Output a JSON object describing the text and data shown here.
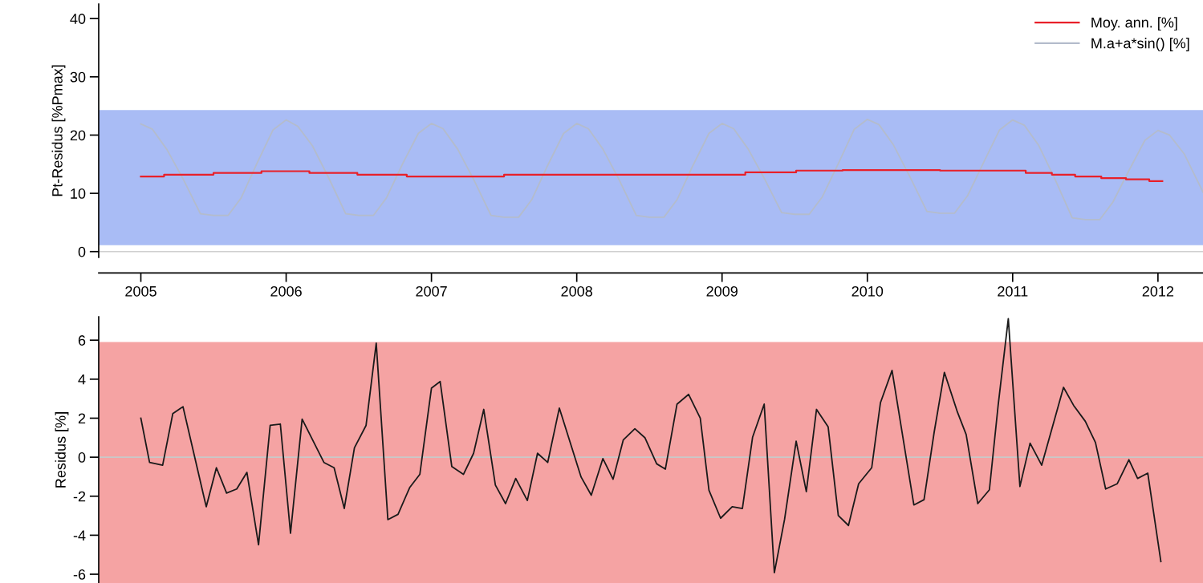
{
  "chart_data": [
    {
      "type": "line",
      "ylabel": "Pt-Residus [%Pmax]",
      "xlim": [
        2004.71,
        2012.31
      ],
      "ylim": [
        -1,
        42.5
      ],
      "xticks": [
        2005,
        2006,
        2007,
        2008,
        2009,
        2010,
        2011,
        2012
      ],
      "yticks": [
        0,
        10,
        20,
        30,
        40
      ],
      "grid": false,
      "legend": "top right",
      "bands": [
        {
          "axis": "y",
          "from": 1.1,
          "to": 24.3,
          "color": "#a9bcf5"
        }
      ],
      "ref_lines": [
        {
          "axis": "y",
          "value": 0,
          "color": "#d0d0d0"
        }
      ],
      "series": [
        {
          "name": "Moy. ann. [%]",
          "type": "step",
          "color": "#e8202a",
          "x": [
            2005.0,
            2005.16,
            2005.5,
            2005.83,
            2006.16,
            2006.49,
            2006.83,
            2007.5,
            2009.16,
            2009.51,
            2009.83,
            2010.5,
            2011.09,
            2011.27,
            2011.43,
            2011.61,
            2011.78,
            2011.94,
            2012.03
          ],
          "values": [
            12.9,
            13.2,
            13.5,
            13.8,
            13.5,
            13.2,
            12.9,
            13.2,
            13.6,
            13.9,
            14.0,
            13.9,
            13.5,
            13.2,
            12.9,
            12.6,
            12.4,
            12.1,
            12.1
          ]
        },
        {
          "name": "M.a+a*sin() [%]",
          "type": "line",
          "color": "#b4bccc",
          "x": [
            2005.0,
            2005.08,
            2005.18,
            2005.29,
            2005.41,
            2005.5,
            2005.6,
            2005.69,
            2005.8,
            2005.91,
            2006.0,
            2006.08,
            2006.18,
            2006.29,
            2006.41,
            2006.5,
            2006.6,
            2006.69,
            2006.8,
            2006.91,
            2007.0,
            2007.08,
            2007.18,
            2007.29,
            2007.41,
            2007.5,
            2007.6,
            2007.69,
            2007.8,
            2007.91,
            2008.0,
            2008.08,
            2008.18,
            2008.29,
            2008.41,
            2008.5,
            2008.6,
            2008.69,
            2008.8,
            2008.91,
            2009.0,
            2009.08,
            2009.18,
            2009.29,
            2009.41,
            2009.5,
            2009.6,
            2009.69,
            2009.8,
            2009.91,
            2010.0,
            2010.08,
            2010.18,
            2010.29,
            2010.41,
            2010.5,
            2010.6,
            2010.69,
            2010.8,
            2010.91,
            2011.0,
            2011.08,
            2011.18,
            2011.29,
            2011.41,
            2011.5,
            2011.6,
            2011.69,
            2011.8,
            2011.91,
            2012.0,
            2012.08,
            2012.18,
            2012.31
          ],
          "values": [
            21.9,
            21.0,
            17.5,
            12.5,
            6.5,
            6.2,
            6.2,
            9.2,
            15.2,
            20.9,
            22.6,
            21.5,
            18.2,
            12.8,
            6.5,
            6.2,
            6.2,
            9.2,
            15.0,
            20.3,
            22.0,
            21.1,
            17.6,
            12.4,
            6.2,
            5.9,
            5.9,
            8.9,
            14.8,
            20.3,
            22.0,
            21.1,
            17.6,
            12.4,
            6.2,
            5.9,
            5.9,
            8.9,
            14.8,
            20.3,
            22.0,
            21.1,
            17.6,
            12.6,
            6.7,
            6.4,
            6.4,
            9.4,
            15.1,
            21.0,
            22.7,
            21.8,
            18.3,
            13.0,
            6.9,
            6.6,
            6.6,
            9.6,
            15.3,
            20.9,
            22.6,
            21.7,
            18.2,
            12.5,
            5.8,
            5.5,
            5.5,
            8.5,
            13.9,
            19.1,
            20.8,
            20.0,
            16.8,
            10.2
          ]
        }
      ]
    },
    {
      "type": "line",
      "ylabel": "Residus [%]",
      "xlim": [
        2004.71,
        2012.31
      ],
      "ylim": [
        -6.45,
        7.2
      ],
      "yticks": [
        -6,
        -4,
        -2,
        0,
        2,
        4,
        6
      ],
      "tick_labels": "y",
      "grid": false,
      "bands": [
        {
          "axis": "y",
          "from": -6.45,
          "to": 5.9,
          "color": "#f5a3a3"
        }
      ],
      "ref_lines": [
        {
          "axis": "y",
          "value": 0,
          "color": "#c8c8c8"
        }
      ],
      "series": [
        {
          "color": "#1a1a1a",
          "x": [
            2005.0,
            2005.06,
            2005.15,
            2005.22,
            2005.29,
            2005.45,
            2005.52,
            2005.59,
            2005.66,
            2005.73,
            2005.81,
            2005.89,
            2005.96,
            2006.03,
            2006.11,
            2006.26,
            2006.33,
            2006.4,
            2006.47,
            2006.55,
            2006.62,
            2006.7,
            2006.77,
            2006.85,
            2006.92,
            2007.0,
            2007.06,
            2007.14,
            2007.22,
            2007.29,
            2007.36,
            2007.44,
            2007.51,
            2007.58,
            2007.66,
            2007.73,
            2007.8,
            2007.88,
            2008.03,
            2008.1,
            2008.18,
            2008.25,
            2008.32,
            2008.4,
            2008.47,
            2008.55,
            2008.61,
            2008.69,
            2008.77,
            2008.85,
            2008.91,
            2008.99,
            2009.07,
            2009.14,
            2009.21,
            2009.29,
            2009.36,
            2009.43,
            2009.51,
            2009.58,
            2009.65,
            2009.73,
            2009.8,
            2009.87,
            2009.94,
            2010.03,
            2010.09,
            2010.17,
            2010.32,
            2010.39,
            2010.46,
            2010.53,
            2010.62,
            2010.68,
            2010.76,
            2010.84,
            2010.9,
            2010.97,
            2011.05,
            2011.12,
            2011.2,
            2011.35,
            2011.42,
            2011.5,
            2011.57,
            2011.64,
            2011.72,
            2011.8,
            2011.86,
            2011.93,
            2012.02
          ],
          "values": [
            2.0,
            -0.27,
            -0.41,
            2.24,
            2.59,
            -2.54,
            -0.54,
            -1.84,
            -1.63,
            -0.78,
            -4.49,
            1.63,
            1.7,
            -3.9,
            1.95,
            -0.27,
            -0.54,
            -2.63,
            0.48,
            1.63,
            5.85,
            -3.2,
            -2.93,
            -1.56,
            -0.88,
            3.54,
            3.88,
            -0.48,
            -0.88,
            0.2,
            2.45,
            -1.43,
            -2.38,
            -1.09,
            -2.22,
            0.2,
            -0.27,
            2.52,
            -1.02,
            -1.95,
            -0.07,
            -1.13,
            0.88,
            1.46,
            0.99,
            -0.34,
            -0.61,
            2.72,
            3.22,
            2.0,
            -1.7,
            -3.13,
            -2.54,
            -2.63,
            1.02,
            2.72,
            -5.92,
            -3.2,
            0.82,
            -1.77,
            2.45,
            1.56,
            -2.99,
            -3.5,
            -1.36,
            -0.54,
            2.79,
            4.45,
            -2.45,
            -2.18,
            1.29,
            4.35,
            2.31,
            1.16,
            -2.38,
            -1.67,
            2.65,
            7.1,
            -1.5,
            0.72,
            -0.41,
            3.58,
            2.65,
            1.84,
            0.75,
            -1.63,
            -1.36,
            -0.13,
            -1.09,
            -0.82,
            -5.35
          ]
        }
      ]
    }
  ]
}
